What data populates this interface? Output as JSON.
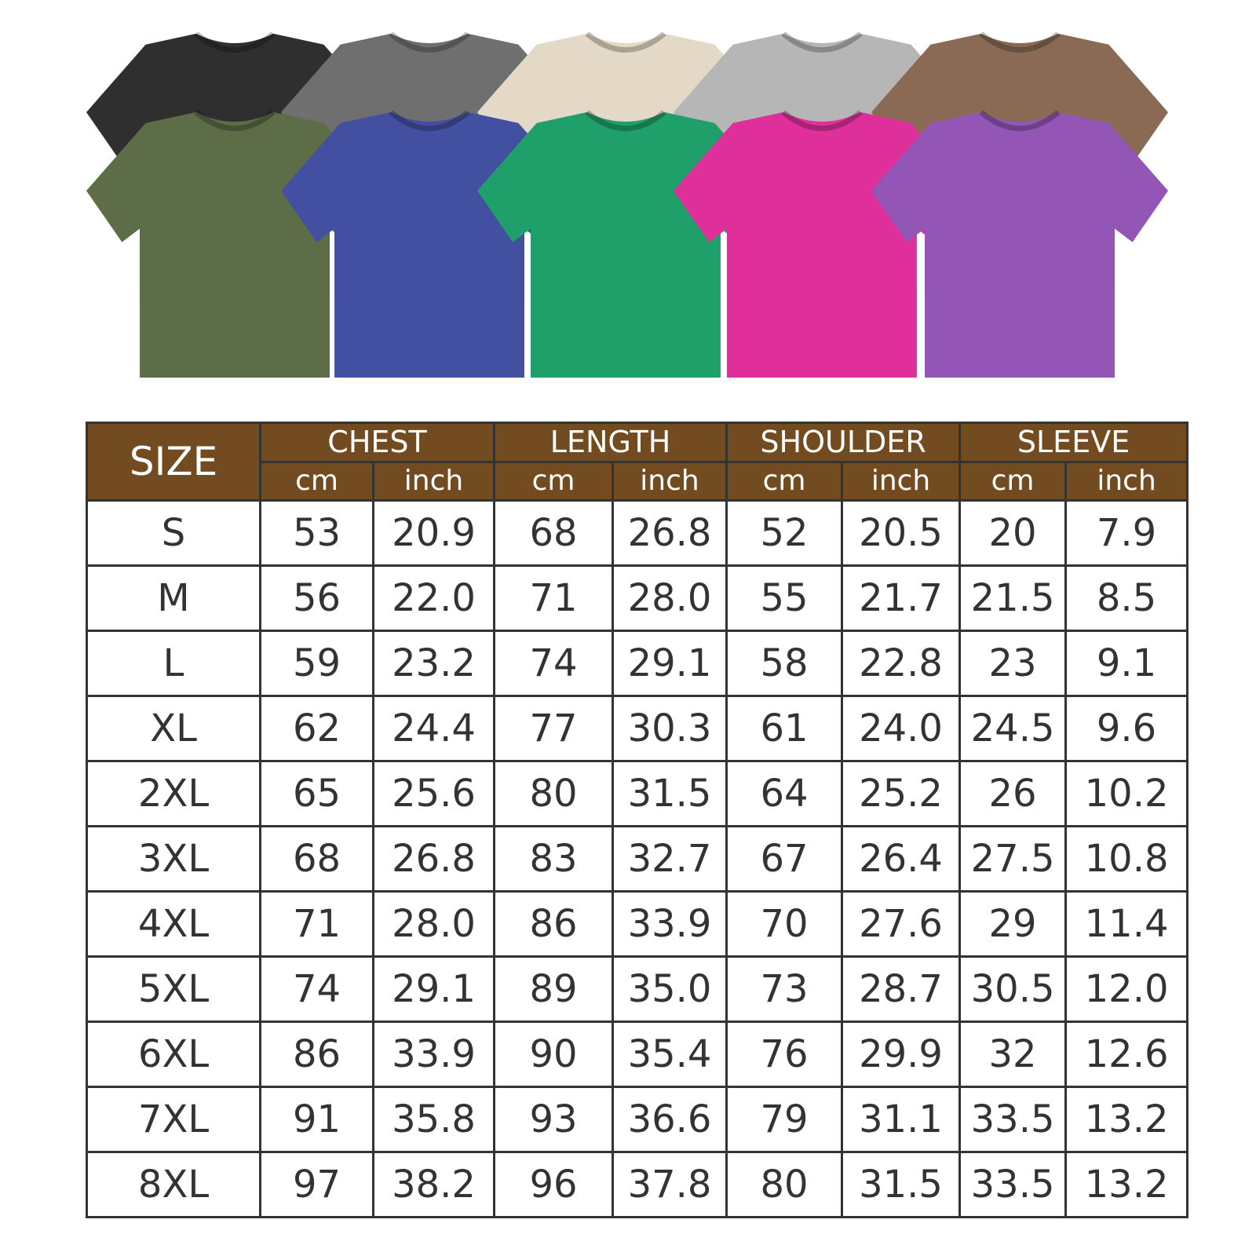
{
  "shirts": {
    "top_row": [
      {
        "color_name": "black",
        "color": "#2f2f2f"
      },
      {
        "color_name": "gray",
        "color": "#6f6f6f"
      },
      {
        "color_name": "cream",
        "color": "#e4d9c6"
      },
      {
        "color_name": "light-gray",
        "color": "#b6b6b6"
      },
      {
        "color_name": "brown",
        "color": "#8a6a55"
      }
    ],
    "bottom_row": [
      {
        "color_name": "olive",
        "color": "#5d6d47"
      },
      {
        "color_name": "blue",
        "color": "#4350a2"
      },
      {
        "color_name": "green",
        "color": "#1f9f6a"
      },
      {
        "color_name": "pink",
        "color": "#df2f9a"
      },
      {
        "color_name": "purple",
        "color": "#9356b6"
      }
    ]
  },
  "table": {
    "header_color": "#734b21",
    "size_label": "SIZE",
    "groups": [
      "CHEST",
      "LENGTH",
      "SHOULDER",
      "SLEEVE"
    ],
    "units": [
      "cm",
      "inch"
    ],
    "rows": [
      [
        "S",
        "53",
        "20.9",
        "68",
        "26.8",
        "52",
        "20.5",
        "20",
        "7.9"
      ],
      [
        "M",
        "56",
        "22.0",
        "71",
        "28.0",
        "55",
        "21.7",
        "21.5",
        "8.5"
      ],
      [
        "L",
        "59",
        "23.2",
        "74",
        "29.1",
        "58",
        "22.8",
        "23",
        "9.1"
      ],
      [
        "XL",
        "62",
        "24.4",
        "77",
        "30.3",
        "61",
        "24.0",
        "24.5",
        "9.6"
      ],
      [
        "2XL",
        "65",
        "25.6",
        "80",
        "31.5",
        "64",
        "25.2",
        "26",
        "10.2"
      ],
      [
        "3XL",
        "68",
        "26.8",
        "83",
        "32.7",
        "67",
        "26.4",
        "27.5",
        "10.8"
      ],
      [
        "4XL",
        "71",
        "28.0",
        "86",
        "33.9",
        "70",
        "27.6",
        "29",
        "11.4"
      ],
      [
        "5XL",
        "74",
        "29.1",
        "89",
        "35.0",
        "73",
        "28.7",
        "30.5",
        "12.0"
      ],
      [
        "6XL",
        "86",
        "33.9",
        "90",
        "35.4",
        "76",
        "29.9",
        "32",
        "12.6"
      ],
      [
        "7XL",
        "91",
        "35.8",
        "93",
        "36.6",
        "79",
        "31.1",
        "33.5",
        "13.2"
      ],
      [
        "8XL",
        "97",
        "38.2",
        "96",
        "37.8",
        "80",
        "31.5",
        "33.5",
        "13.2"
      ]
    ]
  }
}
